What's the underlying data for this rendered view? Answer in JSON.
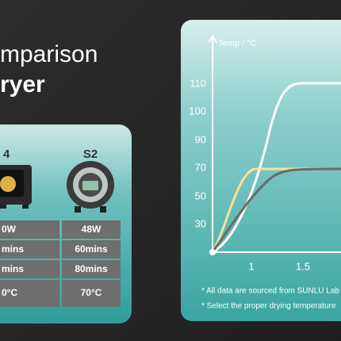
{
  "heading": [
    "mparison",
    "ryer"
  ],
  "table": {
    "headers": [
      "4",
      "S2"
    ],
    "rows": [
      [
        "0W",
        "48W"
      ],
      [
        "mins",
        "60mins"
      ],
      [
        "mins",
        "80mins"
      ],
      [
        "0°C",
        "70°C"
      ]
    ]
  },
  "chart": {
    "y_label": "Temp / °C",
    "yticks": [
      "110",
      "100",
      "90",
      "70",
      "50",
      "30"
    ],
    "xticks": [
      "1",
      "1.5"
    ]
  },
  "notes": [
    "* All data are sourced from SUNLU Lab",
    "* Select the proper drying temperature"
  ]
}
